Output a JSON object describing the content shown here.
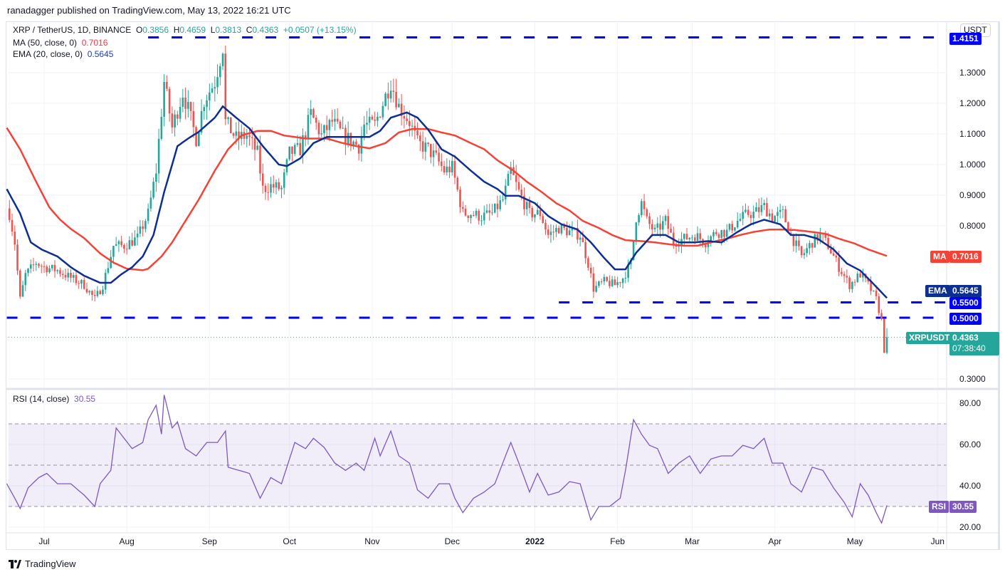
{
  "publish_line": "ranadagger published on TradingView.com, May 13, 2022 16:21 UTC",
  "legend": {
    "symbol": "XRP / TetherUS, 1D, BINANCE",
    "o_label": "O",
    "o": "0.3856",
    "h_label": "H",
    "h": "0.4659",
    "l_label": "L",
    "l": "0.3813",
    "c_label": "C",
    "c": "0.4363",
    "change": "+0.0507 (+13.15%)",
    "ma_label": "MA (50, close, 0)",
    "ma_value": "0.7016",
    "ema_label": "EMA (20, close, 0)",
    "ema_value": "0.5645",
    "rsi_label": "RSI (14, close)",
    "rsi_value": "30.55"
  },
  "currency": "USDT",
  "tags": {
    "top_level": "1.4151",
    "ma_name": "MA",
    "ma_value": "0.7016",
    "ema_name": "EMA",
    "ema_value": "0.5645",
    "level_055": "0.5500",
    "level_050": "0.5000",
    "symbol_name": "XRPUSDT",
    "price": "0.4363",
    "countdown": "07:38:40",
    "rsi_name": "RSI",
    "rsi_value": "30.55"
  },
  "footer": {
    "brand": "TradingView"
  },
  "colors": {
    "up": "#26a69a",
    "down": "#ef5350",
    "ma": "#f44336",
    "ema": "#0d2f8f",
    "level": "#0000ff",
    "rsi": "#7e57c2"
  },
  "chart_data": [
    {
      "type": "candlestick",
      "title": "XRP / TetherUS, 1D, BINANCE",
      "x_unit": "days since 2021-07-01",
      "ylim": [
        0.27,
        1.43
      ],
      "price_ticks": [
        "1.3000",
        "1.2000",
        "1.1000",
        "1.0000",
        "0.9000",
        "0.8000",
        "0.3000"
      ],
      "price_tick_values": [
        1.3,
        1.2,
        1.1,
        1.0,
        0.9,
        0.8,
        0.3
      ],
      "time_ticks": [
        "Jul",
        "Aug",
        "Sep",
        "Oct",
        "Nov",
        "Dec",
        "2022",
        "Feb",
        "Mar",
        "Apr",
        "May",
        "Jun"
      ],
      "time_tick_days": [
        0,
        31,
        62,
        92,
        123,
        153,
        184,
        215,
        243,
        274,
        304,
        335
      ],
      "last_candle": {
        "day": 316,
        "open": 0.3856,
        "high": 0.4659,
        "low": 0.3813,
        "close": 0.4363
      },
      "close_path": [
        [
          -13,
          0.84
        ],
        [
          -11,
          0.745
        ],
        [
          -9,
          0.56
        ],
        [
          -7,
          0.64
        ],
        [
          -3,
          0.68
        ],
        [
          0,
          0.665
        ],
        [
          5,
          0.655
        ],
        [
          10,
          0.63
        ],
        [
          15,
          0.607
        ],
        [
          19,
          0.56
        ],
        [
          22,
          0.607
        ],
        [
          26,
          0.735
        ],
        [
          30,
          0.735
        ],
        [
          35,
          0.76
        ],
        [
          39,
          0.84
        ],
        [
          42,
          0.98
        ],
        [
          45,
          1.27
        ],
        [
          48,
          1.12
        ],
        [
          52,
          1.235
        ],
        [
          54,
          1.18
        ],
        [
          57,
          1.085
        ],
        [
          60,
          1.21
        ],
        [
          64,
          1.27
        ],
        [
          67,
          1.385
        ],
        [
          68,
          1.14
        ],
        [
          72,
          1.085
        ],
        [
          76,
          1.095
        ],
        [
          80,
          1.037
        ],
        [
          82,
          0.92
        ],
        [
          85,
          0.93
        ],
        [
          89,
          0.92
        ],
        [
          92,
          1.037
        ],
        [
          96,
          1.05
        ],
        [
          100,
          1.165
        ],
        [
          104,
          1.095
        ],
        [
          108,
          1.14
        ],
        [
          112,
          1.095
        ],
        [
          118,
          1.06
        ],
        [
          120,
          1.13
        ],
        [
          124,
          1.13
        ],
        [
          130,
          1.27
        ],
        [
          133,
          1.19
        ],
        [
          137,
          1.14
        ],
        [
          140,
          1.07
        ],
        [
          144,
          1.05
        ],
        [
          147,
          1.02
        ],
        [
          150,
          0.98
        ],
        [
          153,
          0.99
        ],
        [
          157,
          0.84
        ],
        [
          160,
          0.84
        ],
        [
          164,
          0.83
        ],
        [
          168,
          0.84
        ],
        [
          172,
          0.885
        ],
        [
          175,
          0.98
        ],
        [
          178,
          0.91
        ],
        [
          182,
          0.84
        ],
        [
          186,
          0.84
        ],
        [
          189,
          0.77
        ],
        [
          193,
          0.793
        ],
        [
          197,
          0.78
        ],
        [
          201,
          0.77
        ],
        [
          204,
          0.677
        ],
        [
          206,
          0.595
        ],
        [
          210,
          0.618
        ],
        [
          214,
          0.607
        ],
        [
          217,
          0.63
        ],
        [
          220,
          0.677
        ],
        [
          222,
          0.828
        ],
        [
          224,
          0.874
        ],
        [
          226,
          0.816
        ],
        [
          229,
          0.78
        ],
        [
          233,
          0.816
        ],
        [
          236,
          0.747
        ],
        [
          240,
          0.758
        ],
        [
          244,
          0.77
        ],
        [
          248,
          0.747
        ],
        [
          252,
          0.78
        ],
        [
          256,
          0.78
        ],
        [
          260,
          0.816
        ],
        [
          264,
          0.84
        ],
        [
          266,
          0.84
        ],
        [
          270,
          0.863
        ],
        [
          273,
          0.828
        ],
        [
          277,
          0.84
        ],
        [
          280,
          0.77
        ],
        [
          284,
          0.7
        ],
        [
          288,
          0.747
        ],
        [
          291,
          0.77
        ],
        [
          294,
          0.735
        ],
        [
          298,
          0.665
        ],
        [
          302,
          0.607
        ],
        [
          306,
          0.642
        ],
        [
          309,
          0.607
        ],
        [
          312,
          0.56
        ],
        [
          314,
          0.49
        ],
        [
          315,
          0.3856
        ]
      ],
      "ma50_path": [
        [
          -14,
          1.12
        ],
        [
          -9,
          1.05
        ],
        [
          -3,
          0.944
        ],
        [
          2,
          0.86
        ],
        [
          6,
          0.82
        ],
        [
          10,
          0.79
        ],
        [
          15,
          0.76
        ],
        [
          21,
          0.71
        ],
        [
          26,
          0.68
        ],
        [
          31,
          0.66
        ],
        [
          37,
          0.655
        ],
        [
          39,
          0.66
        ],
        [
          44,
          0.7
        ],
        [
          48,
          0.746
        ],
        [
          53,
          0.816
        ],
        [
          58,
          0.886
        ],
        [
          64,
          0.98
        ],
        [
          69,
          1.05
        ],
        [
          74,
          1.095
        ],
        [
          80,
          1.11
        ],
        [
          85,
          1.11
        ],
        [
          90,
          1.095
        ],
        [
          98,
          1.085
        ],
        [
          106,
          1.085
        ],
        [
          112,
          1.07
        ],
        [
          117,
          1.06
        ],
        [
          122,
          1.053
        ],
        [
          128,
          1.07
        ],
        [
          133,
          1.105
        ],
        [
          138,
          1.116
        ],
        [
          144,
          1.116
        ],
        [
          149,
          1.105
        ],
        [
          154,
          1.095
        ],
        [
          160,
          1.07
        ],
        [
          165,
          1.05
        ],
        [
          170,
          1.014
        ],
        [
          176,
          0.98
        ],
        [
          181,
          0.944
        ],
        [
          186,
          0.914
        ],
        [
          192,
          0.874
        ],
        [
          197,
          0.85
        ],
        [
          202,
          0.816
        ],
        [
          208,
          0.793
        ],
        [
          213,
          0.77
        ],
        [
          218,
          0.753
        ],
        [
          224,
          0.75
        ],
        [
          229,
          0.746
        ],
        [
          234,
          0.74
        ],
        [
          240,
          0.735
        ],
        [
          245,
          0.735
        ],
        [
          250,
          0.746
        ],
        [
          256,
          0.758
        ],
        [
          261,
          0.77
        ],
        [
          266,
          0.78
        ],
        [
          272,
          0.788
        ],
        [
          277,
          0.788
        ],
        [
          282,
          0.786
        ],
        [
          288,
          0.78
        ],
        [
          293,
          0.774
        ],
        [
          298,
          0.758
        ],
        [
          304,
          0.742
        ],
        [
          309,
          0.723
        ],
        [
          316,
          0.7016
        ]
      ],
      "ema20_path": [
        [
          -14,
          0.92
        ],
        [
          -9,
          0.84
        ],
        [
          -5,
          0.746
        ],
        [
          -1,
          0.723
        ],
        [
          5,
          0.7
        ],
        [
          10,
          0.665
        ],
        [
          15,
          0.637
        ],
        [
          21,
          0.614
        ],
        [
          25,
          0.614
        ],
        [
          29,
          0.642
        ],
        [
          33,
          0.665
        ],
        [
          37,
          0.7
        ],
        [
          41,
          0.77
        ],
        [
          45,
          0.91
        ],
        [
          50,
          1.06
        ],
        [
          54,
          1.085
        ],
        [
          58,
          1.107
        ],
        [
          64,
          1.153
        ],
        [
          67,
          1.19
        ],
        [
          72,
          1.153
        ],
        [
          77,
          1.118
        ],
        [
          82,
          1.06
        ],
        [
          88,
          1.0
        ],
        [
          91,
          0.995
        ],
        [
          96,
          1.02
        ],
        [
          101,
          1.07
        ],
        [
          106,
          1.09
        ],
        [
          112,
          1.09
        ],
        [
          117,
          1.09
        ],
        [
          122,
          1.09
        ],
        [
          126,
          1.11
        ],
        [
          130,
          1.153
        ],
        [
          136,
          1.17
        ],
        [
          140,
          1.153
        ],
        [
          144,
          1.114
        ],
        [
          149,
          1.05
        ],
        [
          154,
          1.026
        ],
        [
          160,
          0.98
        ],
        [
          165,
          0.944
        ],
        [
          170,
          0.92
        ],
        [
          173,
          0.898
        ],
        [
          178,
          0.898
        ],
        [
          184,
          0.874
        ],
        [
          189,
          0.832
        ],
        [
          194,
          0.805
        ],
        [
          200,
          0.788
        ],
        [
          205,
          0.746
        ],
        [
          210,
          0.695
        ],
        [
          214,
          0.658
        ],
        [
          218,
          0.658
        ],
        [
          222,
          0.712
        ],
        [
          228,
          0.77
        ],
        [
          233,
          0.77
        ],
        [
          238,
          0.746
        ],
        [
          244,
          0.746
        ],
        [
          249,
          0.75
        ],
        [
          254,
          0.746
        ],
        [
          260,
          0.78
        ],
        [
          265,
          0.805
        ],
        [
          270,
          0.82
        ],
        [
          276,
          0.805
        ],
        [
          280,
          0.77
        ],
        [
          285,
          0.77
        ],
        [
          290,
          0.758
        ],
        [
          296,
          0.723
        ],
        [
          301,
          0.677
        ],
        [
          306,
          0.654
        ],
        [
          310,
          0.619
        ],
        [
          316,
          0.5645
        ]
      ],
      "levels": [
        {
          "value": 1.4151,
          "from_day": 39
        },
        {
          "value": 0.55,
          "from_day": 193
        },
        {
          "value": 0.5,
          "from_day": -14
        }
      ]
    },
    {
      "type": "line",
      "title": "RSI (14, close)",
      "ylim": [
        15,
        88
      ],
      "ticks": [
        "80.00",
        "60.00",
        "40.00",
        "20.00"
      ],
      "tick_values": [
        80,
        60,
        40,
        20
      ],
      "band": [
        30,
        70
      ],
      "midline": 50,
      "path": [
        [
          -14,
          41
        ],
        [
          -11,
          34
        ],
        [
          -9,
          29
        ],
        [
          -6,
          39
        ],
        [
          -2,
          44
        ],
        [
          1,
          46
        ],
        [
          5,
          41
        ],
        [
          10,
          41
        ],
        [
          15,
          35.5
        ],
        [
          19,
          30
        ],
        [
          21,
          41
        ],
        [
          25,
          47.5
        ],
        [
          27,
          68
        ],
        [
          30,
          63
        ],
        [
          33,
          58
        ],
        [
          37,
          61
        ],
        [
          39,
          72
        ],
        [
          42,
          79
        ],
        [
          44,
          65
        ],
        [
          45,
          84
        ],
        [
          48,
          68
        ],
        [
          50,
          71
        ],
        [
          53,
          58
        ],
        [
          57,
          54.5
        ],
        [
          61,
          61
        ],
        [
          65,
          61
        ],
        [
          68,
          66.5
        ],
        [
          69,
          49
        ],
        [
          73,
          47.5
        ],
        [
          77,
          46
        ],
        [
          81,
          34
        ],
        [
          85,
          44
        ],
        [
          89,
          41
        ],
        [
          92,
          53
        ],
        [
          94,
          61
        ],
        [
          98,
          58
        ],
        [
          101,
          63
        ],
        [
          105,
          58.6
        ],
        [
          109,
          51
        ],
        [
          113,
          47.5
        ],
        [
          117,
          51
        ],
        [
          120,
          47.5
        ],
        [
          124,
          63
        ],
        [
          126,
          54.5
        ],
        [
          130,
          66.5
        ],
        [
          133,
          54.5
        ],
        [
          137,
          51
        ],
        [
          140,
          38
        ],
        [
          144,
          34
        ],
        [
          148,
          41
        ],
        [
          152,
          41
        ],
        [
          154,
          34
        ],
        [
          157,
          27
        ],
        [
          161,
          34
        ],
        [
          165,
          37
        ],
        [
          169,
          41
        ],
        [
          173,
          54.5
        ],
        [
          175,
          61
        ],
        [
          178,
          51
        ],
        [
          182,
          37
        ],
        [
          185,
          46
        ],
        [
          189,
          35.5
        ],
        [
          193,
          37
        ],
        [
          197,
          42
        ],
        [
          201,
          41
        ],
        [
          205,
          23.5
        ],
        [
          208,
          30
        ],
        [
          212,
          30
        ],
        [
          216,
          34
        ],
        [
          218,
          47.5
        ],
        [
          221,
          72
        ],
        [
          224,
          65
        ],
        [
          227,
          59.6
        ],
        [
          230,
          58
        ],
        [
          234,
          46
        ],
        [
          238,
          51
        ],
        [
          242,
          54.5
        ],
        [
          246,
          46
        ],
        [
          250,
          53
        ],
        [
          254,
          54.5
        ],
        [
          258,
          54.5
        ],
        [
          262,
          59.6
        ],
        [
          266,
          58
        ],
        [
          270,
          63
        ],
        [
          273,
          51
        ],
        [
          277,
          51
        ],
        [
          280,
          41
        ],
        [
          284,
          37
        ],
        [
          288,
          49
        ],
        [
          292,
          47.5
        ],
        [
          296,
          39
        ],
        [
          300,
          32
        ],
        [
          303,
          25
        ],
        [
          306,
          41
        ],
        [
          309,
          35.5
        ],
        [
          312,
          27
        ],
        [
          314,
          22
        ],
        [
          316,
          30.55
        ]
      ]
    }
  ]
}
